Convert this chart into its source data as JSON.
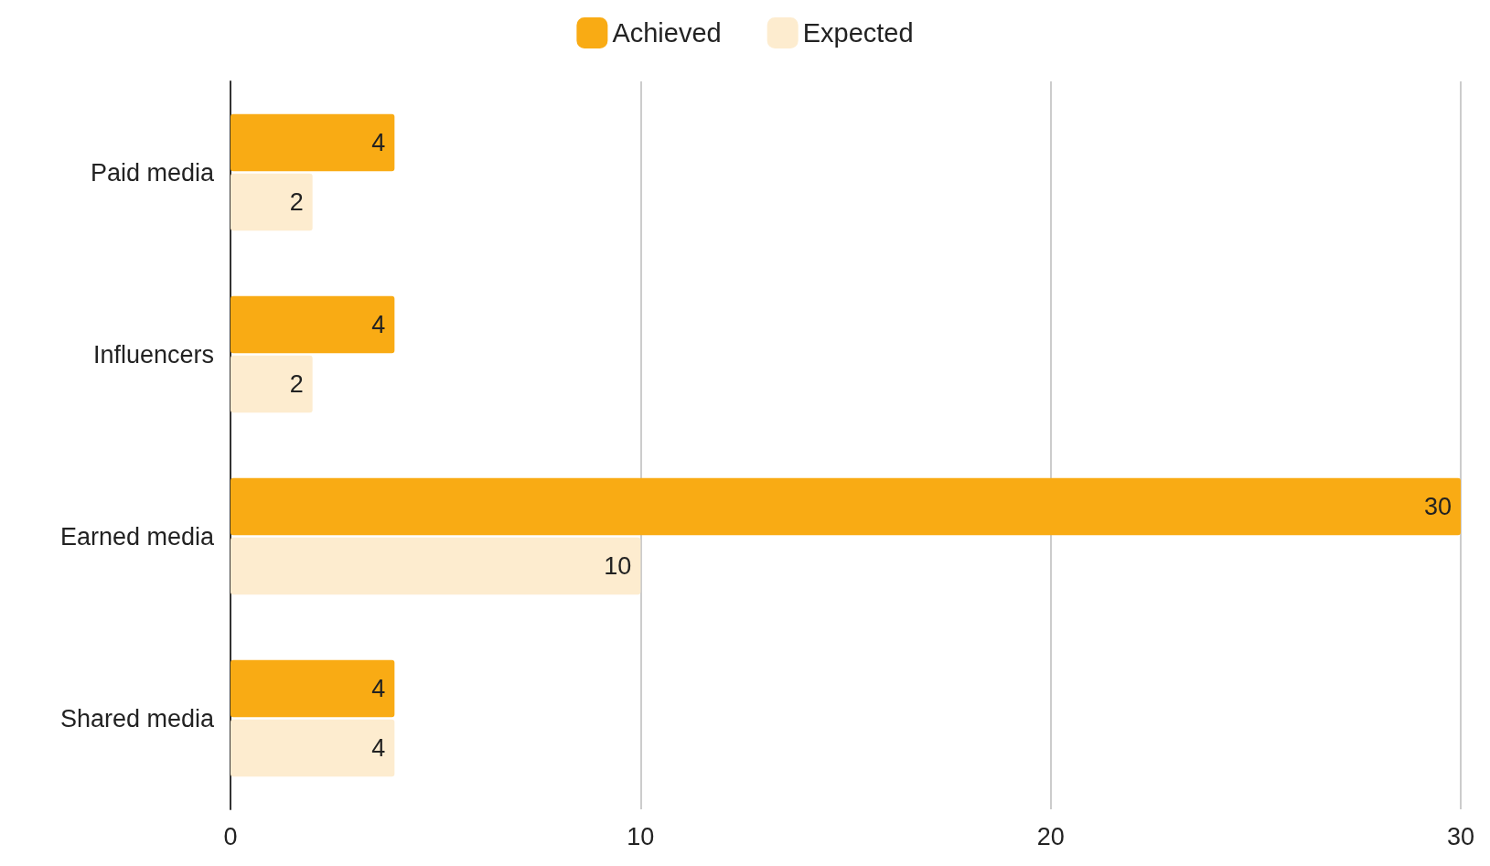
{
  "chart_data": {
    "type": "bar",
    "orientation": "horizontal",
    "categories": [
      "Paid media",
      "Influencers",
      "Earned media",
      "Shared media"
    ],
    "series": [
      {
        "name": "Achieved",
        "color": "#f9ab14",
        "values": [
          4,
          4,
          30,
          4
        ]
      },
      {
        "name": "Expected",
        "color": "#fdeccf",
        "values": [
          2,
          2,
          10,
          4
        ]
      }
    ],
    "xlim": [
      0,
      30
    ],
    "xticks": [
      0,
      10,
      20,
      30
    ],
    "grid": "x",
    "legend": "top",
    "data_labels": true
  }
}
